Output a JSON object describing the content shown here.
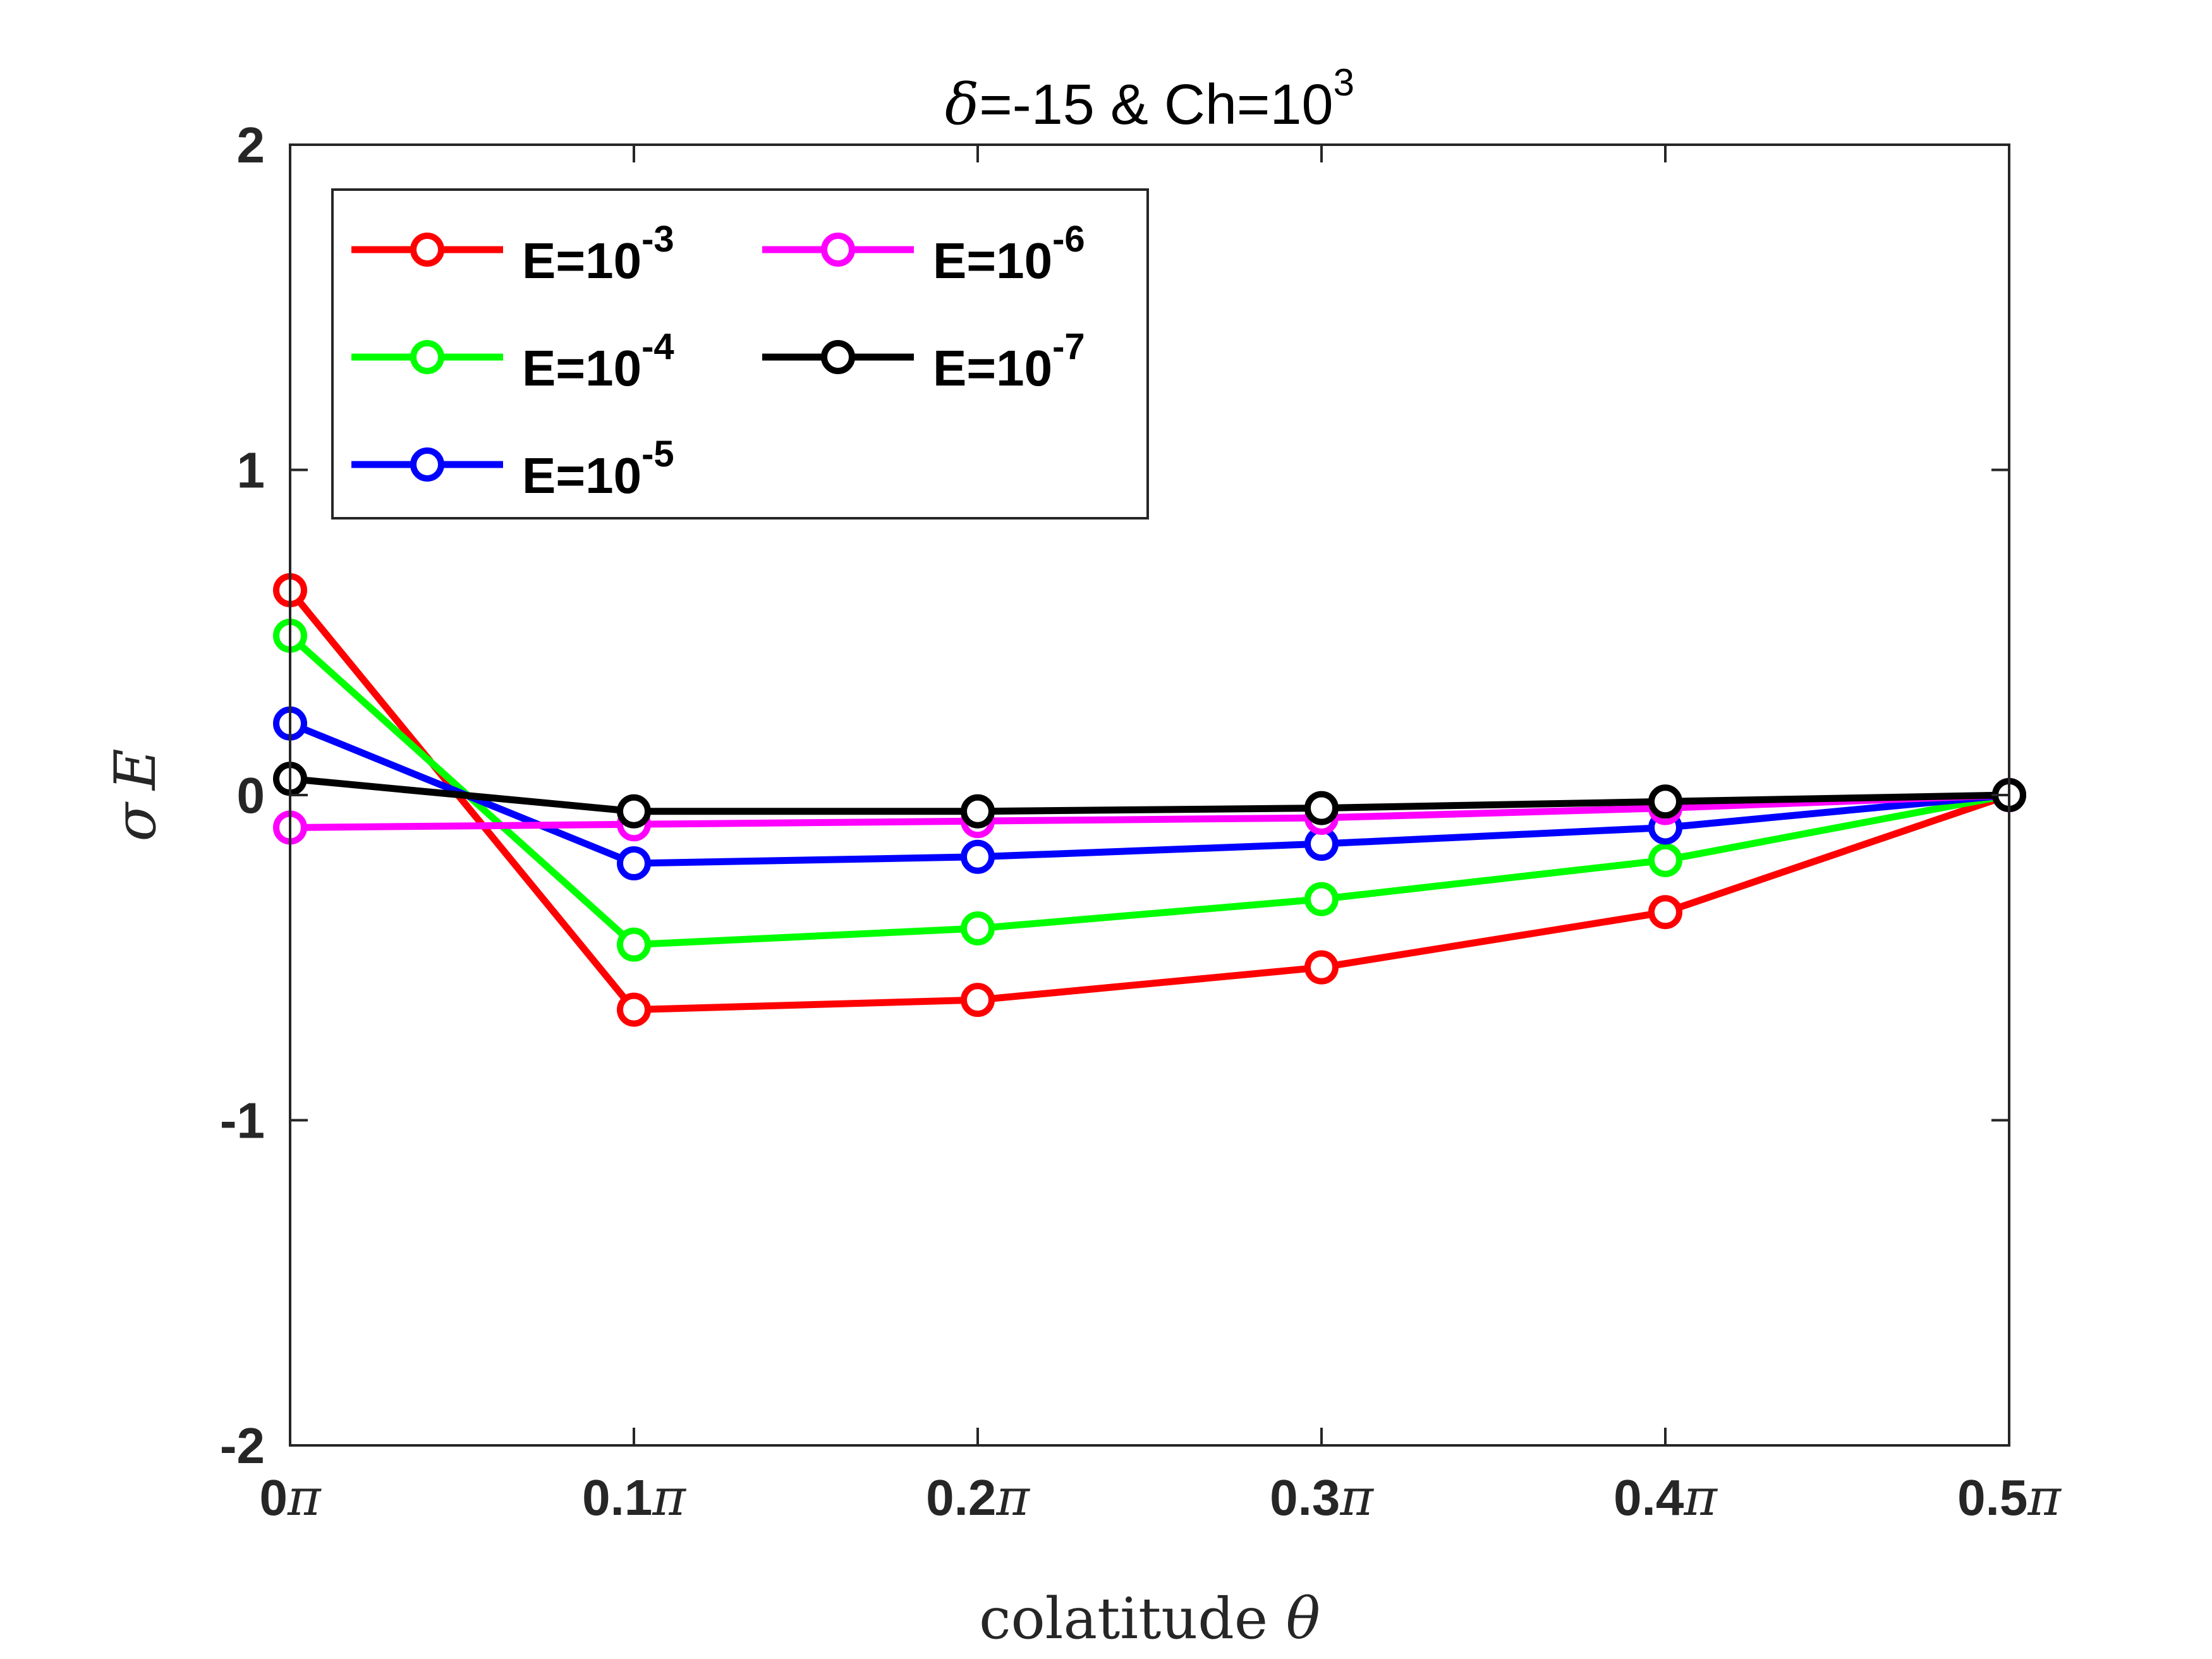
{
  "chart_data": {
    "type": "line",
    "title": {
      "delta": "δ",
      "text": "=-15 & Ch=10",
      "sup": "3"
    },
    "xlabel": {
      "text": "colatitude ",
      "symbol": "θ"
    },
    "ylabel": {
      "symbol": "σ",
      "var": "E"
    },
    "xlim": [
      0,
      0.5
    ],
    "ylim": [
      -2,
      2
    ],
    "x": [
      0,
      0.1,
      0.2,
      0.3,
      0.4,
      0.5
    ],
    "xticks": [
      {
        "value": 0,
        "label": "0",
        "suffix": "π"
      },
      {
        "value": 0.1,
        "label": "0.1",
        "suffix": "π"
      },
      {
        "value": 0.2,
        "label": "0.2",
        "suffix": "π"
      },
      {
        "value": 0.3,
        "label": "0.3",
        "suffix": "π"
      },
      {
        "value": 0.4,
        "label": "0.4",
        "suffix": "π"
      },
      {
        "value": 0.5,
        "label": "0.5",
        "suffix": "π"
      }
    ],
    "yticks": [
      {
        "value": 2,
        "label": "2"
      },
      {
        "value": 1,
        "label": "1"
      },
      {
        "value": 0,
        "label": "0"
      },
      {
        "value": -1,
        "label": "-1"
      },
      {
        "value": -2,
        "label": "-2"
      }
    ],
    "grid": false,
    "legend_position": "top-left",
    "legend_columns": 2,
    "series": [
      {
        "name": "E=10",
        "sup": "-3",
        "color": "#ff0000",
        "values": [
          0.63,
          -0.66,
          -0.63,
          -0.53,
          -0.36,
          0.0
        ]
      },
      {
        "name": "E=10",
        "sup": "-4",
        "color": "#00ff00",
        "values": [
          0.49,
          -0.46,
          -0.41,
          -0.32,
          -0.2,
          0.0
        ]
      },
      {
        "name": "E=10",
        "sup": "-5",
        "color": "#0000ff",
        "values": [
          0.22,
          -0.21,
          -0.19,
          -0.15,
          -0.1,
          0.0
        ]
      },
      {
        "name": "E=10",
        "sup": "-6",
        "color": "#ff00ff",
        "values": [
          -0.1,
          -0.09,
          -0.08,
          -0.07,
          -0.04,
          0.0
        ]
      },
      {
        "name": "E=10",
        "sup": "-7",
        "color": "#000000",
        "values": [
          0.05,
          -0.05,
          -0.05,
          -0.04,
          -0.02,
          0.0
        ]
      }
    ]
  }
}
